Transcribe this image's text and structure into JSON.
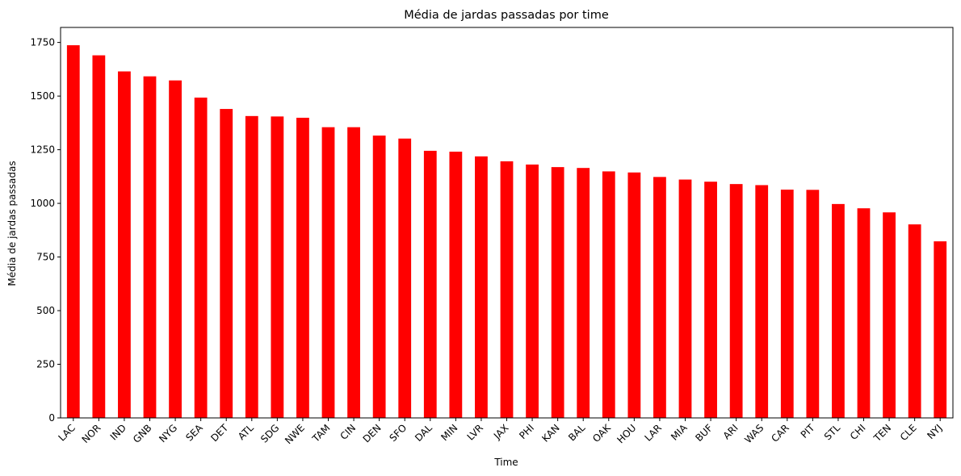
{
  "chart_data": {
    "type": "bar",
    "title": "Média de jardas passadas por time",
    "xlabel": "Time",
    "ylabel": "Média de jardas passadas",
    "categories": [
      "LAC",
      "NOR",
      "IND",
      "GNB",
      "NYG",
      "SEA",
      "DET",
      "ATL",
      "SDG",
      "NWE",
      "TAM",
      "CIN",
      "DEN",
      "SFO",
      "DAL",
      "MIN",
      "LVR",
      "JAX",
      "PHI",
      "KAN",
      "BAL",
      "OAK",
      "HOU",
      "LAR",
      "MIA",
      "BUF",
      "ARI",
      "WAS",
      "CAR",
      "PIT",
      "STL",
      "CHI",
      "TEN",
      "CLE",
      "NYJ"
    ],
    "values": [
      1737,
      1690,
      1615,
      1592,
      1573,
      1493,
      1440,
      1407,
      1405,
      1399,
      1355,
      1355,
      1316,
      1302,
      1245,
      1241,
      1219,
      1196,
      1181,
      1169,
      1165,
      1149,
      1144,
      1123,
      1111,
      1101,
      1090,
      1085,
      1064,
      1063,
      997,
      977,
      958,
      902,
      823
    ],
    "ylim": [
      0,
      1820
    ],
    "yticks": [
      0,
      250,
      500,
      750,
      1000,
      1250,
      1500,
      1750
    ],
    "bar_color": "#ff0000",
    "grid": false,
    "legend": false
  }
}
